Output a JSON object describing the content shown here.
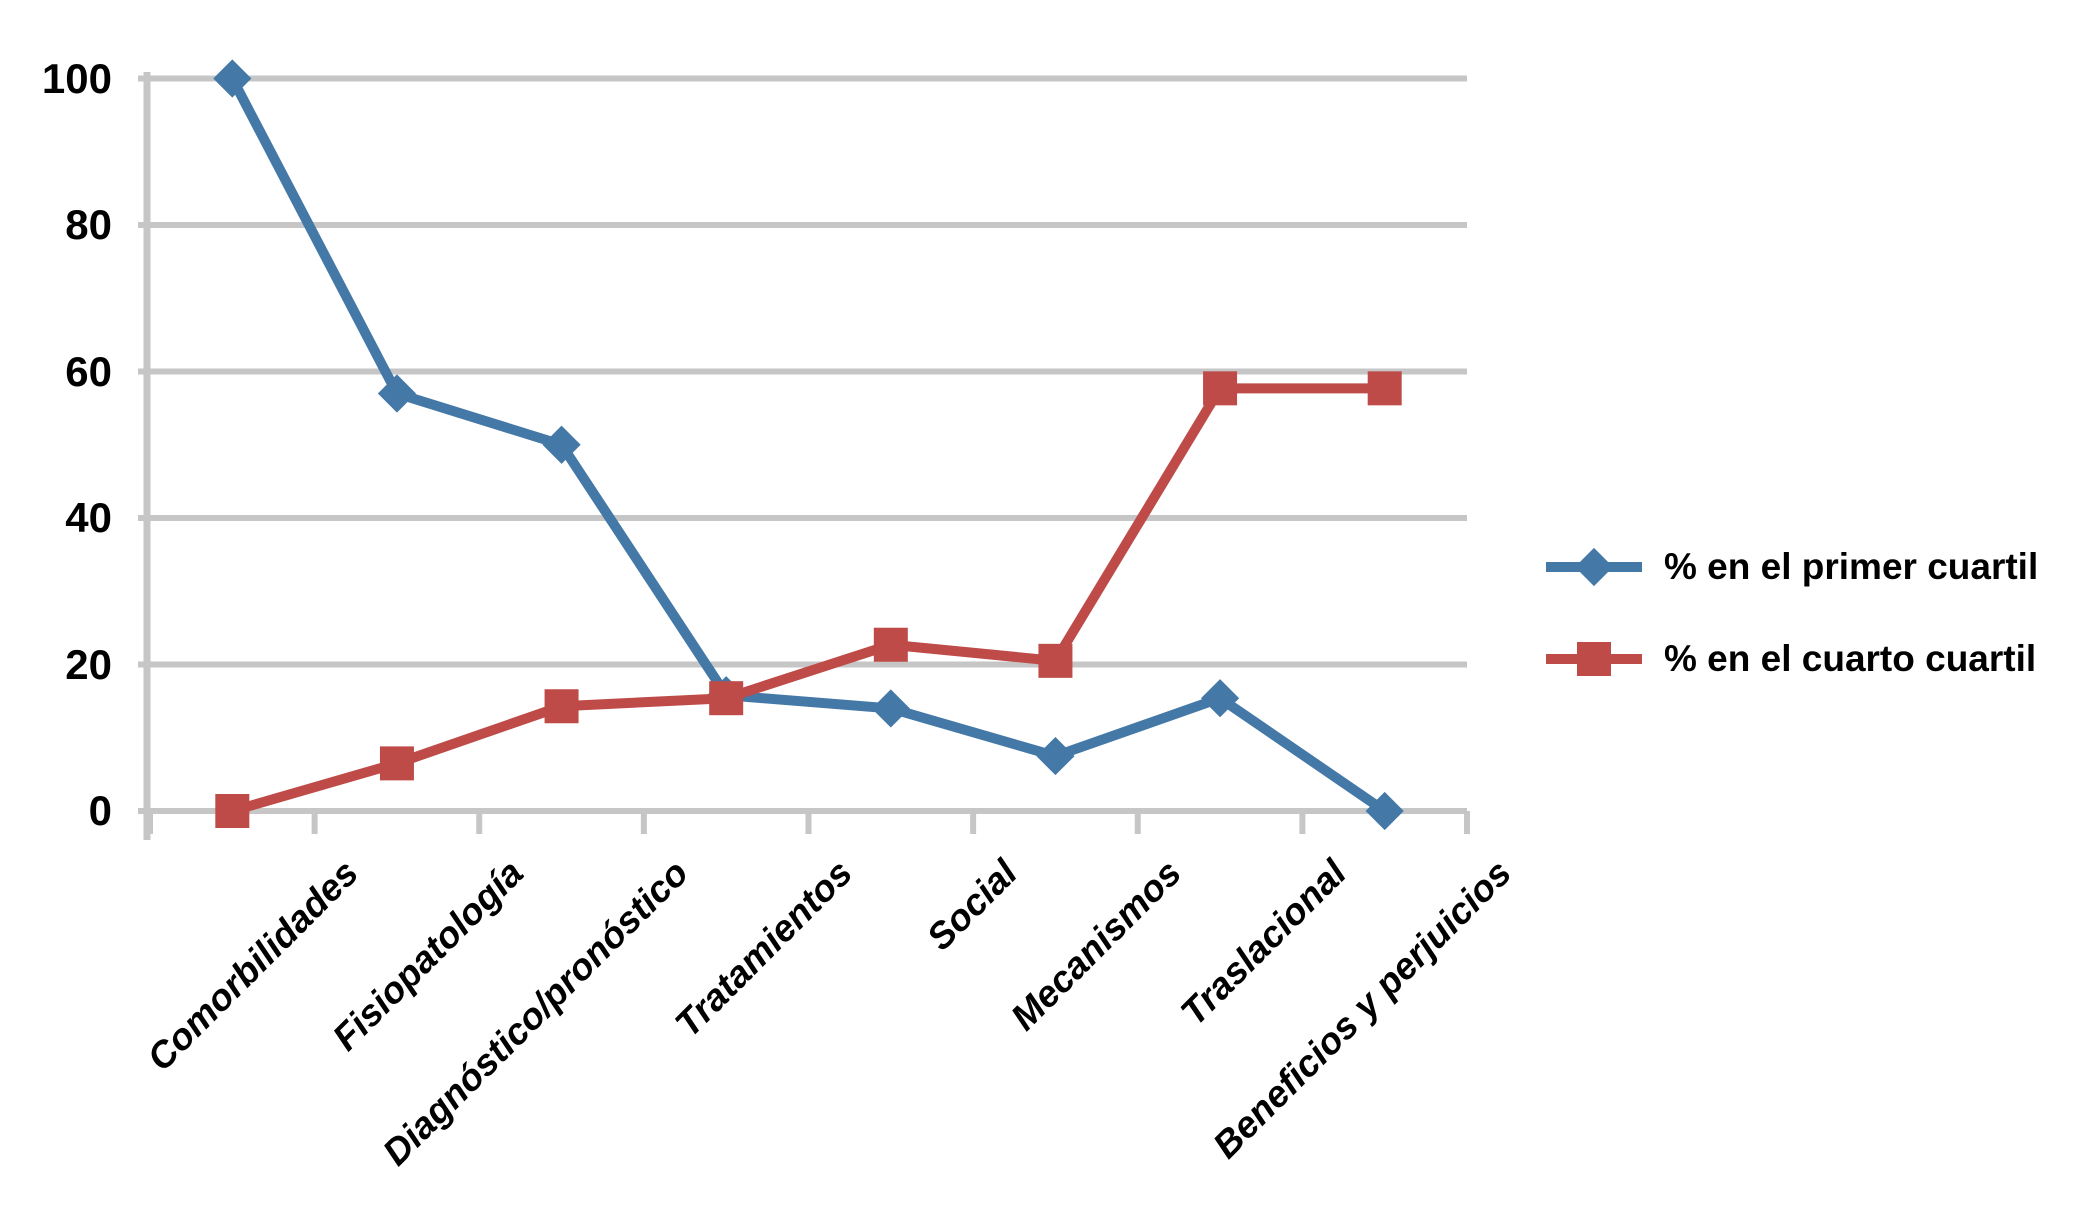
{
  "chart_data": {
    "type": "line",
    "title": "",
    "xlabel": "",
    "ylabel": "",
    "categories": [
      "Comorbilidades",
      "Fisiopatología",
      "Diagnóstico/pronóstico",
      "Tratamientos",
      "Social",
      "Mecanismos",
      "Traslacional",
      "Beneficios y perjuicios"
    ],
    "series": [
      {
        "name": "% en el primer cuartil",
        "marker": "diamond",
        "color": "#4478A7",
        "values": [
          100,
          57,
          50,
          15.8,
          14,
          7.5,
          15.4,
          0
        ]
      },
      {
        "name": "% en el cuarto cuartil",
        "marker": "square",
        "color": "#BE4B48",
        "values": [
          0,
          6.5,
          14.3,
          15.4,
          22.7,
          20.5,
          57.7,
          57.7
        ]
      }
    ],
    "yticks": [
      0,
      20,
      40,
      60,
      80,
      100
    ],
    "ylim": [
      0,
      100
    ],
    "grid": "horizontal",
    "legend_position": "right-center"
  },
  "colors": {
    "grid": "#C6C6C6",
    "axis": "#C6C6C6",
    "text": "#000000",
    "background": "#FFFFFF"
  }
}
